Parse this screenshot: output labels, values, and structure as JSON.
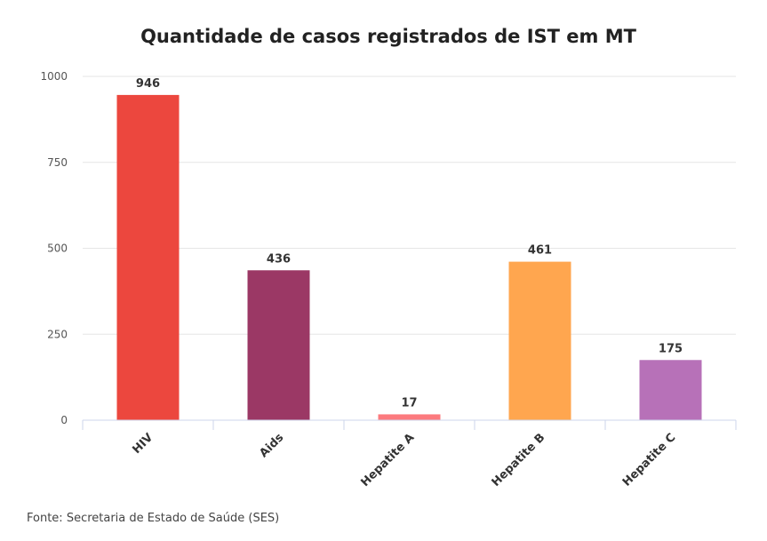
{
  "chart_data": {
    "type": "bar",
    "title": "Quantidade de casos registrados de IST em MT",
    "categories": [
      "HIV",
      "Aids",
      "Hepatite A",
      "Hepatite B",
      "Hepatite C"
    ],
    "values": [
      946,
      436,
      17,
      461,
      175
    ],
    "colors": [
      "#ec473e",
      "#9b3865",
      "#fc7a7e",
      "#ffa64f",
      "#b771b8"
    ],
    "xlabel": "",
    "ylabel": "",
    "ylim": [
      0,
      1000
    ],
    "yticks": [
      0,
      250,
      500,
      750,
      1000
    ],
    "grid": true,
    "legend": "none"
  },
  "source": "Fonte: Secretaria de Estado de Saúde (SES)"
}
